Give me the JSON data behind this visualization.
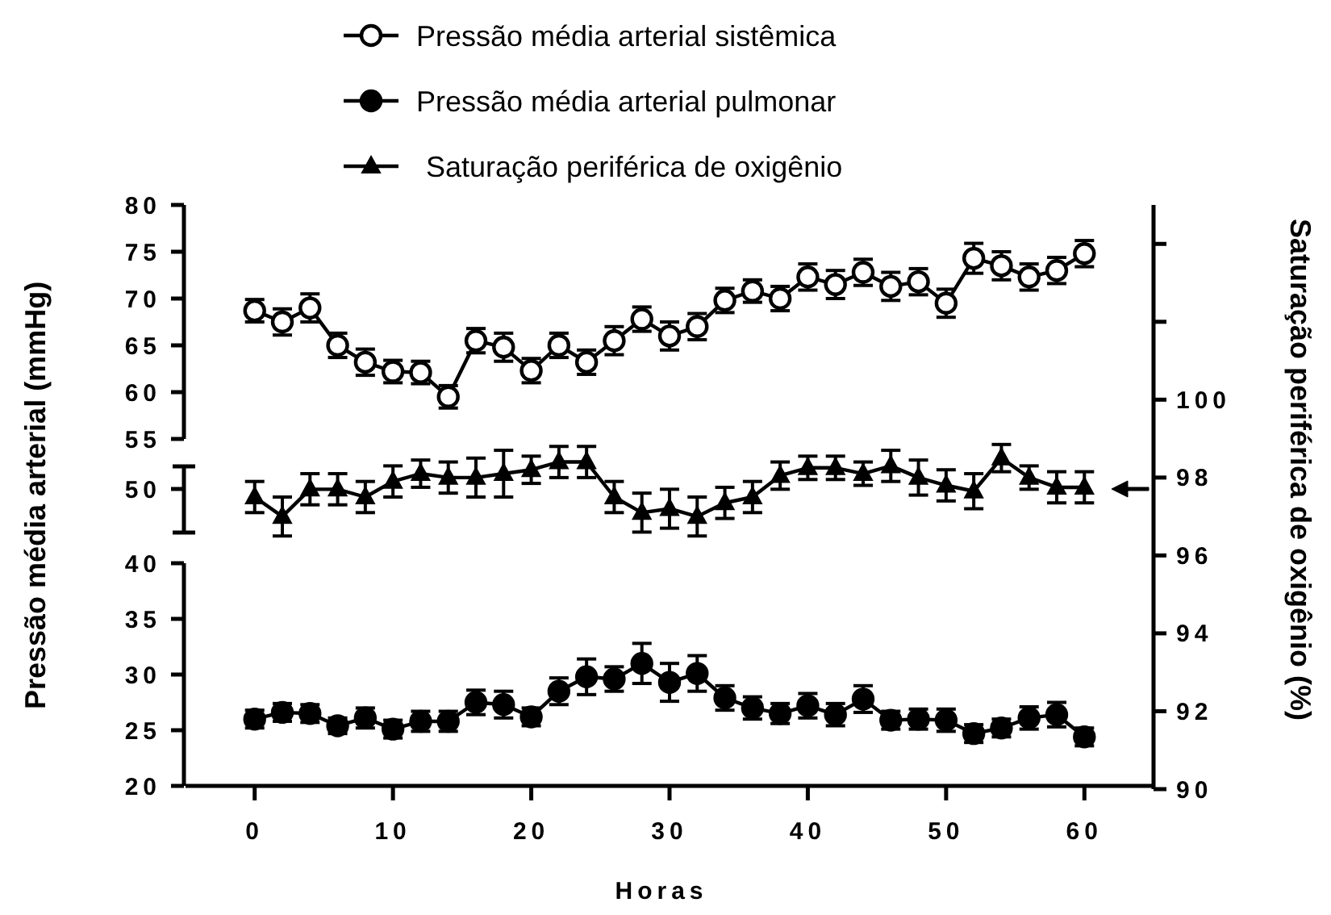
{
  "chart_data": [
    {
      "type": "line",
      "legend": "top",
      "line_style": "solid",
      "tick_labels": "y",
      "ylim": [
        55,
        80
      ],
      "yticks": [
        55,
        60,
        65,
        70,
        75,
        80
      ],
      "x": [
        0,
        2,
        4,
        6,
        8,
        10,
        12,
        14,
        16,
        18,
        20,
        22,
        24,
        26,
        28,
        30,
        32,
        34,
        36,
        38,
        40,
        42,
        44,
        46,
        48,
        50,
        52,
        54,
        56,
        58,
        60
      ],
      "series": [
        {
          "name": "Pressão média arterial sistêmica",
          "color": "#000000",
          "marker": "circle",
          "values": [
            68.7,
            67.5,
            69,
            65,
            63.2,
            62.2,
            62.1,
            59.5,
            65.5,
            64.8,
            62.3,
            65,
            63.2,
            65.5,
            67.8,
            66,
            67,
            69.8,
            70.8,
            70,
            72.3,
            71.5,
            72.8,
            71.3,
            71.8,
            69.5,
            74.3,
            73.5,
            72.3,
            73,
            74.8
          ],
          "errors": [
            1.2,
            1.4,
            1.5,
            1.3,
            1.4,
            1.2,
            1.2,
            1.2,
            1.3,
            1.5,
            1.3,
            1.3,
            1.3,
            1.5,
            1.3,
            1.5,
            1.4,
            1.3,
            1.2,
            1.3,
            1.4,
            1.5,
            1.4,
            1.5,
            1.4,
            1.5,
            1.6,
            1.5,
            1.4,
            1.4,
            1.4
          ]
        }
      ]
    },
    {
      "type": "line",
      "legend": "top",
      "line_style": "solid",
      "tick_labels": "y",
      "ylabel": "Pressão média arterial (mmHg)",
      "annotations": [
        "50"
      ],
      "ylim": [
        20,
        40
      ],
      "yticks": [
        20,
        25,
        30,
        35,
        40
      ],
      "x": [
        0,
        2,
        4,
        6,
        8,
        10,
        12,
        14,
        16,
        18,
        20,
        22,
        24,
        26,
        28,
        30,
        32,
        34,
        36,
        38,
        40,
        42,
        44,
        46,
        48,
        50,
        52,
        54,
        56,
        58,
        60
      ],
      "series": [
        {
          "name": "Pressão média arterial pulmonar",
          "color": "#000000",
          "marker": "circle",
          "values": [
            26,
            26.6,
            26.5,
            25.4,
            26.1,
            25.1,
            25.8,
            25.8,
            27.5,
            27.3,
            26.2,
            28.5,
            29.8,
            29.6,
            31,
            29.3,
            30.1,
            27.9,
            27,
            26.5,
            27.2,
            26.4,
            27.8,
            25.9,
            26,
            25.9,
            24.7,
            25.2,
            26.1,
            26.4,
            24.4
          ],
          "errors": [
            0.8,
            0.8,
            0.8,
            0.7,
            0.9,
            0.8,
            0.9,
            0.9,
            1.1,
            1.2,
            0.8,
            1.2,
            1.6,
            1.1,
            1.8,
            1.7,
            1.6,
            1.1,
            1.0,
            0.9,
            1.1,
            1.0,
            1.2,
            0.8,
            0.9,
            1.0,
            0.8,
            0.8,
            1.0,
            1.1,
            0.8
          ]
        }
      ]
    },
    {
      "type": "line",
      "legend": "top",
      "line_style": "solid",
      "xlabel": "Horas",
      "y2label": "Saturação periférica de oxigênio (%)",
      "xlim": [
        -5,
        65
      ],
      "xticks": [
        0,
        10,
        20,
        30,
        40,
        50,
        60
      ],
      "y2lim": [
        90,
        105
      ],
      "y2ticks": [
        90,
        92,
        94,
        96,
        98,
        100,
        {
          "value": 102,
          "label": null
        },
        {
          "value": 104,
          "label": null
        }
      ],
      "x": [
        0,
        2,
        4,
        6,
        8,
        10,
        12,
        14,
        16,
        18,
        20,
        22,
        24,
        26,
        28,
        30,
        32,
        34,
        36,
        38,
        40,
        42,
        44,
        46,
        48,
        50,
        52,
        54,
        56,
        58,
        60
      ],
      "series": [
        {
          "name": "Saturação periférica de oxigênio",
          "color": "#000000",
          "marker": "triangle",
          "axis": "y2",
          "values": [
            97.5,
            97,
            97.7,
            97.7,
            97.5,
            97.9,
            98.1,
            98,
            98,
            98.1,
            98.2,
            98.4,
            98.4,
            97.5,
            97.1,
            97.2,
            97,
            97.35,
            97.5,
            98.05,
            98.25,
            98.25,
            98.1,
            98.3,
            98,
            97.8,
            97.65,
            98.5,
            98,
            97.75,
            97.75
          ],
          "errors": [
            0.4,
            0.5,
            0.4,
            0.4,
            0.4,
            0.4,
            0.35,
            0.4,
            0.5,
            0.6,
            0.35,
            0.4,
            0.4,
            0.4,
            0.5,
            0.5,
            0.5,
            0.4,
            0.4,
            0.35,
            0.3,
            0.3,
            0.3,
            0.4,
            0.45,
            0.4,
            0.45,
            0.35,
            0.3,
            0.4,
            0.4
          ]
        }
      ]
    }
  ]
}
